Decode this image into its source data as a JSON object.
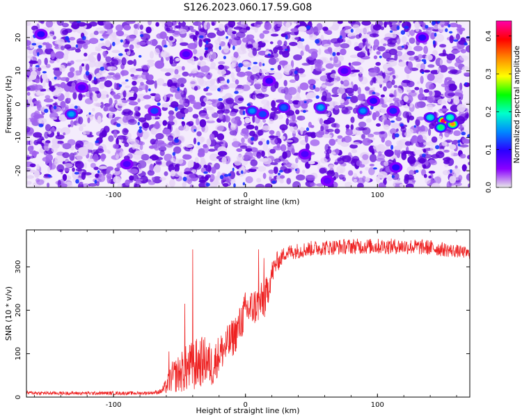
{
  "title": "S126.2023.060.17.59.G08",
  "colors": {
    "noise_low": "#e6d4f6",
    "noise_mid": "#a060ee",
    "noise_high": "#5a00d8",
    "snr_line": "#ee2222",
    "colorbar": [
      "#e8e8e8",
      "#8a00ff",
      "#2a00ff",
      "#0088ff",
      "#00ffcc",
      "#00ff00",
      "#ffff00",
      "#ff8800",
      "#ff0000",
      "#ff00aa"
    ]
  },
  "chart_data": [
    {
      "type": "heatmap",
      "xlabel": "Height of straight line (km)",
      "ylabel": "Frequency (Hz)",
      "xlim": [
        -166,
        170
      ],
      "ylim": [
        -25,
        25
      ],
      "xticks": [
        -100,
        0,
        100
      ],
      "yticks": [
        -20,
        -10,
        0,
        10,
        20
      ],
      "colorbar": {
        "label": "Normalized spectral amplitude",
        "range": [
          0,
          0.44
        ],
        "ticks": [
          "0.0",
          "0.1",
          "0.2",
          "0.3",
          "0.4"
        ]
      },
      "hotspots": [
        {
          "x": 150,
          "y": -5,
          "value": 0.42
        },
        {
          "x": 157,
          "y": -6,
          "value": 0.34
        },
        {
          "x": 140,
          "y": -4,
          "value": 0.18
        },
        {
          "x": 148,
          "y": -7,
          "value": 0.22
        },
        {
          "x": 155,
          "y": -4,
          "value": 0.2
        },
        {
          "x": 57,
          "y": -1,
          "value": 0.16
        },
        {
          "x": 89,
          "y": -2,
          "value": 0.15
        },
        {
          "x": 5,
          "y": -2,
          "value": 0.15
        },
        {
          "x": 13,
          "y": -3,
          "value": 0.12
        },
        {
          "x": 29,
          "y": -1,
          "value": 0.13
        },
        {
          "x": -132,
          "y": -3,
          "value": 0.16
        },
        {
          "x": -69,
          "y": -2,
          "value": 0.12
        },
        {
          "x": 112,
          "y": -2,
          "value": 0.11
        },
        {
          "x": 97,
          "y": 1,
          "value": 0.1
        },
        {
          "x": 134,
          "y": 20,
          "value": 0.1
        },
        {
          "x": -155,
          "y": 21,
          "value": 0.1
        },
        {
          "x": -124,
          "y": 5,
          "value": 0.08
        },
        {
          "x": 18,
          "y": 7,
          "value": 0.09
        },
        {
          "x": 75,
          "y": 10,
          "value": 0.08
        },
        {
          "x": -45,
          "y": 15,
          "value": 0.08
        },
        {
          "x": 45,
          "y": -15,
          "value": 0.08
        },
        {
          "x": 114,
          "y": -19,
          "value": 0.1
        },
        {
          "x": -90,
          "y": -18,
          "value": 0.08
        },
        {
          "x": 62,
          "y": -23,
          "value": 0.07
        }
      ]
    },
    {
      "type": "line",
      "xlabel": "Height of straight line (km)",
      "ylabel": "SNR (10 * v/v)",
      "xlim": [
        -166,
        170
      ],
      "ylim": [
        0,
        385
      ],
      "xticks": [
        -100,
        0,
        100
      ],
      "yticks": [
        0,
        100,
        200,
        300
      ],
      "series": [
        {
          "x": [
            -166,
            -150,
            -125,
            -100,
            -80,
            -70,
            -64,
            -60,
            -56,
            -50,
            -45,
            -40,
            -35,
            -30,
            -25,
            -20,
            -15,
            -10,
            -5,
            0,
            5,
            10,
            15,
            20,
            25,
            30,
            40,
            50,
            60,
            80,
            100,
            120,
            140,
            155,
            165,
            170
          ],
          "y": [
            10,
            9,
            9,
            9,
            9,
            10,
            13,
            25,
            45,
            55,
            65,
            70,
            80,
            85,
            70,
            100,
            115,
            135,
            160,
            200,
            205,
            215,
            225,
            285,
            320,
            340,
            345,
            350,
            352,
            355,
            355,
            355,
            352,
            345,
            340,
            335
          ],
          "noise": [
            4,
            4,
            4,
            4,
            4,
            4,
            6,
            18,
            35,
            45,
            55,
            60,
            60,
            55,
            50,
            45,
            45,
            45,
            45,
            45,
            45,
            45,
            45,
            30,
            20,
            18,
            18,
            18,
            18,
            18,
            18,
            18,
            18,
            16,
            14,
            12
          ]
        }
      ],
      "spikes": [
        {
          "x": -40,
          "y": 340
        },
        {
          "x": -46,
          "y": 215
        },
        {
          "x": -58,
          "y": 105
        },
        {
          "x": 10,
          "y": 340
        },
        {
          "x": 14,
          "y": 320
        }
      ]
    }
  ]
}
